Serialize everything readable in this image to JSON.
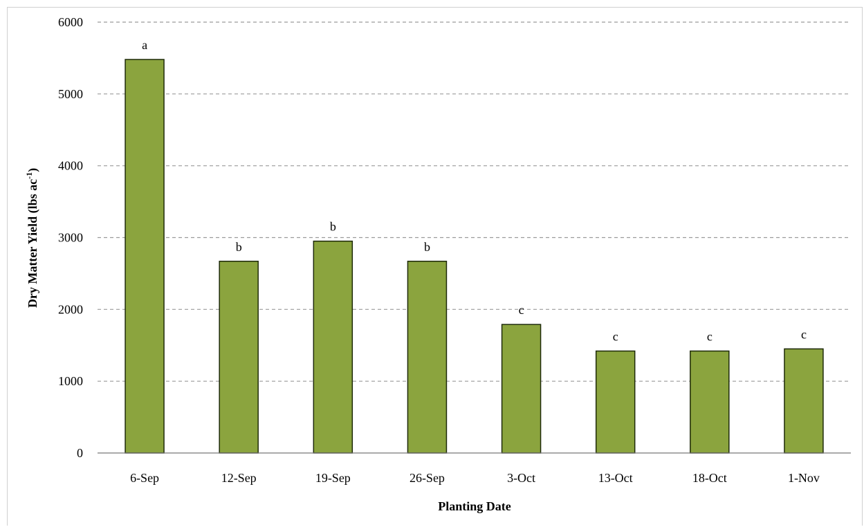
{
  "chart_data": {
    "type": "bar",
    "title": "",
    "xlabel": "Planting Date",
    "ylabel": "Dry Matter Yield (lbs ac",
    "ylabel_superscript": "-1",
    "ylabel_suffix": ")",
    "categories": [
      "6-Sep",
      "12-Sep",
      "19-Sep",
      "26-Sep",
      "3-Oct",
      "13-Oct",
      "18-Oct",
      "1-Nov"
    ],
    "values": [
      5480,
      2670,
      2950,
      2670,
      1790,
      1420,
      1420,
      1450
    ],
    "significance_letters": [
      "a",
      "b",
      "b",
      "b",
      "c",
      "c",
      "c",
      "c"
    ],
    "ylim": [
      0,
      6000
    ],
    "yticks": [
      "0",
      "1000",
      "2000",
      "3000",
      "4000",
      "5000",
      "6000"
    ],
    "grid": true,
    "grid_style": "dashed",
    "bar_color": "#8ba43e",
    "bar_edge_color": "#1e2a0a",
    "legend": "none"
  }
}
